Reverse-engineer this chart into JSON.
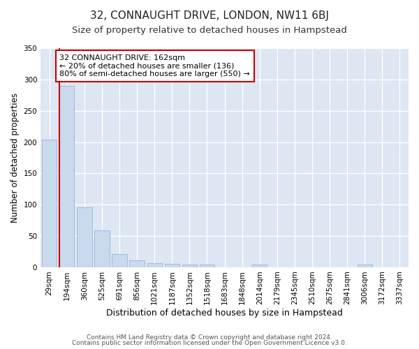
{
  "title": "32, CONNAUGHT DRIVE, LONDON, NW11 6BJ",
  "subtitle": "Size of property relative to detached houses in Hampstead",
  "xlabel": "Distribution of detached houses by size in Hampstead",
  "ylabel": "Number of detached properties",
  "bar_values": [
    204,
    290,
    96,
    59,
    21,
    11,
    6,
    5,
    4,
    4,
    0,
    0,
    4,
    0,
    0,
    0,
    0,
    0,
    4,
    0,
    0
  ],
  "bar_labels": [
    "29sqm",
    "194sqm",
    "360sqm",
    "525sqm",
    "691sqm",
    "856sqm",
    "1021sqm",
    "1187sqm",
    "1352sqm",
    "1518sqm",
    "1683sqm",
    "1848sqm",
    "2014sqm",
    "2179sqm",
    "2345sqm",
    "2510sqm",
    "2675sqm",
    "2841sqm",
    "3006sqm",
    "3172sqm",
    "3337sqm"
  ],
  "bar_color": "#c9d9ee",
  "bar_edge_color": "#9ab4d4",
  "bg_color": "#dde6f3",
  "grid_color": "#ffffff",
  "ylim": [
    0,
    350
  ],
  "yticks": [
    0,
    50,
    100,
    150,
    200,
    250,
    300,
    350
  ],
  "vline_x": 0.55,
  "vline_color": "#cc0000",
  "annotation_text": "32 CONNAUGHT DRIVE: 162sqm\n← 20% of detached houses are smaller (136)\n80% of semi-detached houses are larger (550) →",
  "annotation_box_color": "#ffffff",
  "annotation_box_edge": "#cc0000",
  "footer_line1": "Contains HM Land Registry data © Crown copyright and database right 2024.",
  "footer_line2": "Contains public sector information licensed under the Open Government Licence v3.0.",
  "title_fontsize": 11,
  "subtitle_fontsize": 9.5,
  "xlabel_fontsize": 9,
  "ylabel_fontsize": 8.5,
  "tick_fontsize": 7.5,
  "annotation_fontsize": 8,
  "footer_fontsize": 6.5
}
